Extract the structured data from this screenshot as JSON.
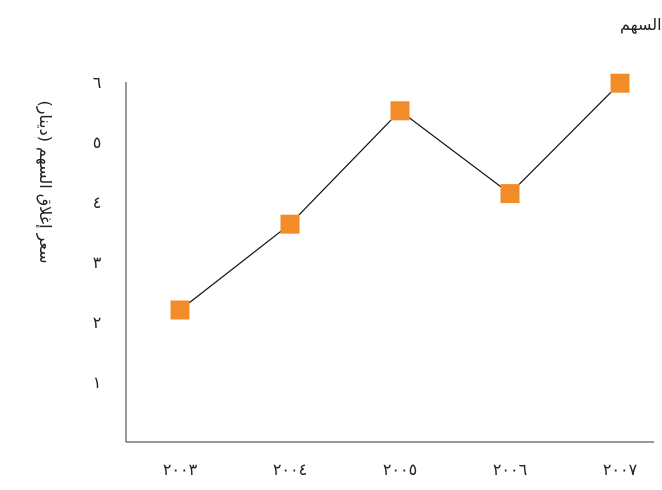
{
  "chart_data": {
    "type": "line",
    "title": "حركة سعر السهم",
    "xlabel": "",
    "ylabel": "سعر إغلاق السهم (دينار)",
    "categories": [
      "٢٠٠٣",
      "٢٠٠٤",
      "٢٠٠٥",
      "٢٠٠٦",
      "٢٠٠٧"
    ],
    "y_tick_labels": [
      "١",
      "٢",
      "٣",
      "٤",
      "٥",
      "٦"
    ],
    "y_tick_values": [
      1,
      2,
      3,
      4,
      5,
      6
    ],
    "ylim": [
      0,
      6
    ],
    "series": [
      {
        "values": [
          2.2,
          3.63,
          5.52,
          4.14,
          5.98
        ],
        "color": "#F28C28",
        "marker": "square"
      }
    ],
    "line_color": "#111111",
    "grid": false,
    "legend": "none"
  }
}
